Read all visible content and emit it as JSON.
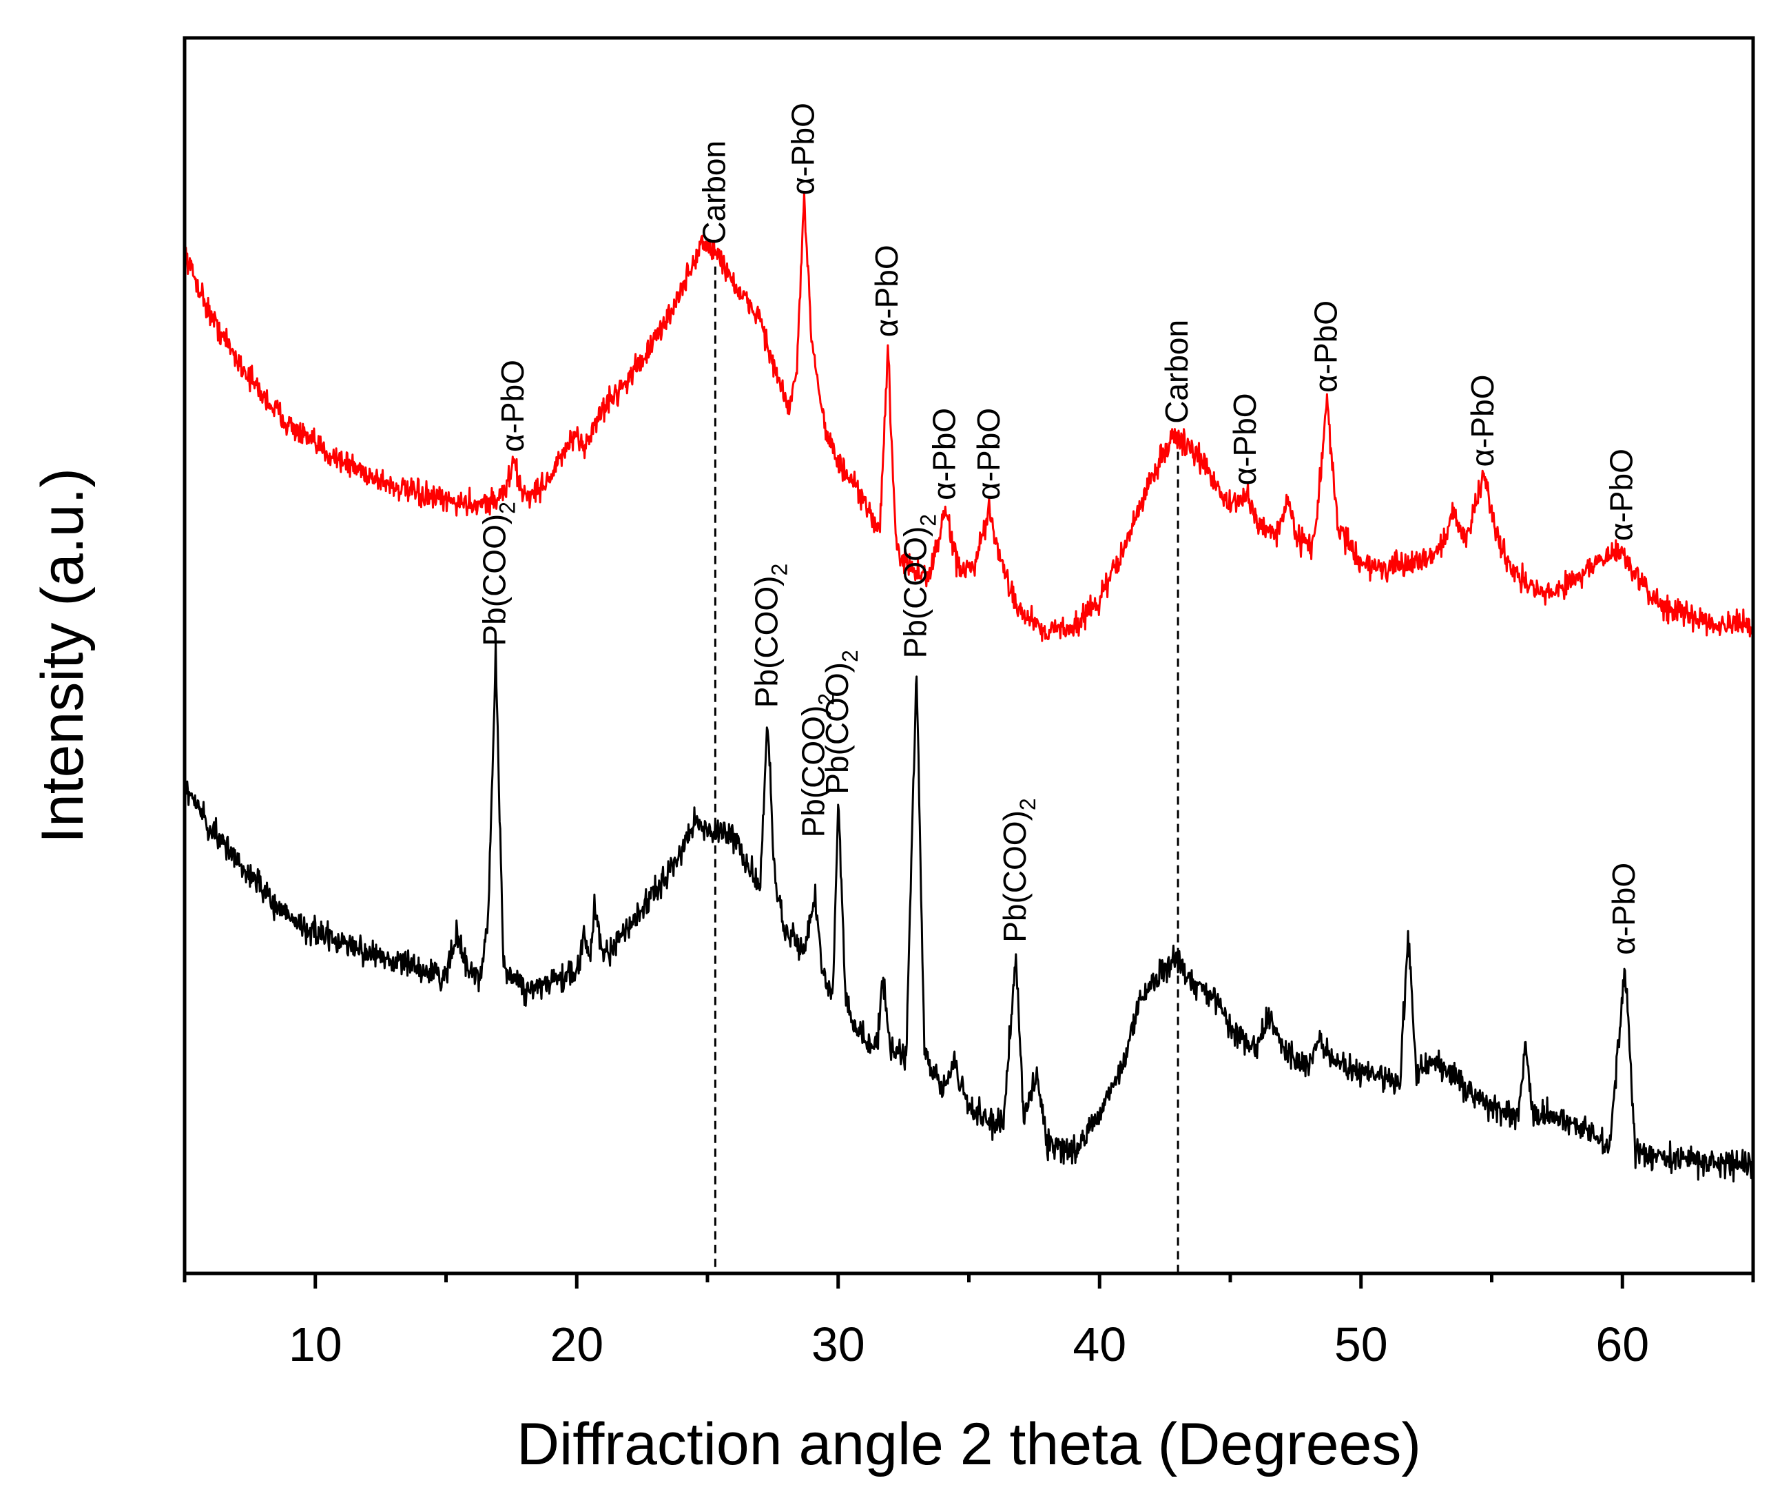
{
  "chart_data": {
    "type": "line",
    "title": "",
    "xlabel": "Diffraction angle 2 theta (Degrees)",
    "ylabel": "Intensity (a.u.)",
    "xlim": [
      5,
      65
    ],
    "ylim": [
      0,
      100
    ],
    "x_ticks": [
      10,
      20,
      30,
      40,
      50,
      60
    ],
    "x_tick_labels": [
      "10",
      "20",
      "30",
      "40",
      "50",
      "60"
    ],
    "y_ticks_shown": false,
    "grid": false,
    "legend": "none",
    "colors": {
      "top_series": "#ff0000",
      "bottom_series": "#000000",
      "axis": "#000000"
    },
    "reference_lines": [
      {
        "label": "Carbon",
        "x": 25.3,
        "style": "dashed"
      },
      {
        "label": "Carbon",
        "x": 43.0,
        "style": "dashed"
      }
    ],
    "series": [
      {
        "name": "top (red) pattern",
        "color": "#ff0000",
        "noise": 1.0,
        "points": [
          [
            5.0,
            82.5
          ],
          [
            6.0,
            77.5
          ],
          [
            7.0,
            74.0
          ],
          [
            8.0,
            71.0
          ],
          [
            9.0,
            68.7
          ],
          [
            10.0,
            67.0
          ],
          [
            11.0,
            65.8
          ],
          [
            12.0,
            64.7
          ],
          [
            13.0,
            63.7
          ],
          [
            14.0,
            63.0
          ],
          [
            15.0,
            62.5
          ],
          [
            16.0,
            62.3
          ],
          [
            17.0,
            62.6
          ],
          [
            17.3,
            63.6
          ],
          [
            17.6,
            65.7
          ],
          [
            17.9,
            63.2
          ],
          [
            18.3,
            63.0
          ],
          [
            19.0,
            64.5
          ],
          [
            19.8,
            67.5
          ],
          [
            20.3,
            67.0
          ],
          [
            21.0,
            70.0
          ],
          [
            22.0,
            72.5
          ],
          [
            23.0,
            75.5
          ],
          [
            24.0,
            79.5
          ],
          [
            24.8,
            83.5
          ],
          [
            25.5,
            82.2
          ],
          [
            26.3,
            79.0
          ],
          [
            27.0,
            77.5
          ],
          [
            27.5,
            73.5
          ],
          [
            28.1,
            70.0
          ],
          [
            28.4,
            72.5
          ],
          [
            28.7,
            86.5
          ],
          [
            29.0,
            75.5
          ],
          [
            29.5,
            68.5
          ],
          [
            30.0,
            65.5
          ],
          [
            30.6,
            63.8
          ],
          [
            31.2,
            61.5
          ],
          [
            31.6,
            60.3
          ],
          [
            31.9,
            75.0
          ],
          [
            32.2,
            59.0
          ],
          [
            32.8,
            56.8
          ],
          [
            33.5,
            56.5
          ],
          [
            34.1,
            61.8
          ],
          [
            34.6,
            57.0
          ],
          [
            35.2,
            57.0
          ],
          [
            35.8,
            61.8
          ],
          [
            36.2,
            57.5
          ],
          [
            37.0,
            53.5
          ],
          [
            38.0,
            52.0
          ],
          [
            39.0,
            52.3
          ],
          [
            40.0,
            54.5
          ],
          [
            41.0,
            59.0
          ],
          [
            42.0,
            64.5
          ],
          [
            42.8,
            67.8
          ],
          [
            43.5,
            66.8
          ],
          [
            44.3,
            64.5
          ],
          [
            45.0,
            62.0
          ],
          [
            45.6,
            63.0
          ],
          [
            46.1,
            60.5
          ],
          [
            46.8,
            60.0
          ],
          [
            47.2,
            62.5
          ],
          [
            47.6,
            59.5
          ],
          [
            48.2,
            59.0
          ],
          [
            48.7,
            70.5
          ],
          [
            49.1,
            60.5
          ],
          [
            50.0,
            57.5
          ],
          [
            51.0,
            57.0
          ],
          [
            52.0,
            57.5
          ],
          [
            53.0,
            58.5
          ],
          [
            53.5,
            61.5
          ],
          [
            54.0,
            59.5
          ],
          [
            54.7,
            64.5
          ],
          [
            55.3,
            59.0
          ],
          [
            56.0,
            56.5
          ],
          [
            57.0,
            54.8
          ],
          [
            58.0,
            56.0
          ],
          [
            59.0,
            57.5
          ],
          [
            60.0,
            58.5
          ],
          [
            60.5,
            56.5
          ],
          [
            61.0,
            55.0
          ],
          [
            62.0,
            53.5
          ],
          [
            63.0,
            53.0
          ],
          [
            64.0,
            52.5
          ],
          [
            65.0,
            52.3
          ]
        ]
      },
      {
        "name": "bottom (black) pattern",
        "color": "#000000",
        "noise": 1.1,
        "points": [
          [
            5.0,
            39.5
          ],
          [
            6.0,
            36.0
          ],
          [
            7.0,
            33.5
          ],
          [
            8.0,
            31.0
          ],
          [
            9.0,
            28.8
          ],
          [
            10.0,
            27.5
          ],
          [
            11.0,
            26.8
          ],
          [
            12.0,
            26.0
          ],
          [
            13.0,
            25.3
          ],
          [
            14.0,
            24.6
          ],
          [
            15.0,
            24.0
          ],
          [
            15.4,
            27.5
          ],
          [
            15.8,
            24.5
          ],
          [
            16.3,
            24.0
          ],
          [
            16.6,
            28.0
          ],
          [
            16.9,
            50.0
          ],
          [
            17.2,
            25.0
          ],
          [
            18.0,
            23.0
          ],
          [
            19.0,
            23.5
          ],
          [
            20.0,
            24.5
          ],
          [
            20.3,
            27.5
          ],
          [
            20.5,
            25.0
          ],
          [
            20.7,
            30.0
          ],
          [
            21.0,
            25.5
          ],
          [
            22.0,
            28.0
          ],
          [
            23.0,
            31.0
          ],
          [
            24.0,
            34.0
          ],
          [
            24.5,
            37.0
          ],
          [
            25.0,
            35.5
          ],
          [
            25.5,
            35.8
          ],
          [
            26.0,
            35.5
          ],
          [
            26.7,
            32.5
          ],
          [
            27.0,
            31.0
          ],
          [
            27.3,
            45.0
          ],
          [
            27.6,
            31.0
          ],
          [
            28.0,
            28.0
          ],
          [
            28.7,
            26.0
          ],
          [
            29.1,
            30.5
          ],
          [
            29.4,
            24.5
          ],
          [
            29.8,
            22.5
          ],
          [
            30.0,
            38.0
          ],
          [
            30.3,
            22.0
          ],
          [
            31.0,
            19.0
          ],
          [
            31.5,
            18.5
          ],
          [
            31.7,
            24.0
          ],
          [
            32.0,
            18.0
          ],
          [
            32.6,
            17.5
          ],
          [
            33.0,
            49.0
          ],
          [
            33.3,
            17.5
          ],
          [
            34.0,
            15.0
          ],
          [
            34.4,
            17.5
          ],
          [
            34.8,
            14.5
          ],
          [
            35.5,
            12.5
          ],
          [
            36.3,
            12.0
          ],
          [
            36.8,
            26.0
          ],
          [
            37.1,
            12.5
          ],
          [
            37.6,
            16.0
          ],
          [
            38.0,
            10.5
          ],
          [
            39.0,
            10.0
          ],
          [
            40.0,
            13.0
          ],
          [
            41.0,
            17.5
          ],
          [
            41.5,
            22.0
          ],
          [
            42.2,
            24.0
          ],
          [
            43.0,
            25.5
          ],
          [
            43.5,
            23.5
          ],
          [
            44.3,
            22.5
          ],
          [
            45.0,
            20.0
          ],
          [
            46.0,
            18.0
          ],
          [
            46.5,
            21.0
          ],
          [
            47.0,
            18.0
          ],
          [
            48.0,
            16.5
          ],
          [
            48.4,
            19.0
          ],
          [
            49.0,
            17.0
          ],
          [
            50.0,
            16.5
          ],
          [
            51.0,
            15.5
          ],
          [
            51.5,
            15.5
          ],
          [
            51.8,
            27.5
          ],
          [
            52.1,
            16.5
          ],
          [
            53.0,
            17.0
          ],
          [
            54.0,
            15.0
          ],
          [
            55.0,
            13.5
          ],
          [
            56.0,
            12.5
          ],
          [
            56.3,
            18.5
          ],
          [
            56.6,
            12.5
          ],
          [
            57.0,
            13.0
          ],
          [
            58.0,
            12.0
          ],
          [
            59.0,
            11.0
          ],
          [
            59.5,
            10.0
          ],
          [
            60.1,
            25.0
          ],
          [
            60.5,
            10.0
          ],
          [
            61.0,
            9.5
          ],
          [
            62.0,
            9.5
          ],
          [
            63.0,
            9.0
          ],
          [
            64.0,
            9.0
          ],
          [
            65.0,
            9.0
          ]
        ]
      }
    ],
    "annotations": [
      {
        "series": "top",
        "label": "α-PbO",
        "x": 17.6,
        "y": 65.7,
        "subscript": ""
      },
      {
        "series": "top",
        "label": "Carbon",
        "x": 25.3,
        "y": 82.5,
        "subscript": ""
      },
      {
        "series": "top",
        "label": "α-PbO",
        "x": 28.7,
        "y": 86.5,
        "subscript": ""
      },
      {
        "series": "top",
        "label": "α-PbO",
        "x": 31.9,
        "y": 75.0,
        "subscript": ""
      },
      {
        "series": "top",
        "label": "α-PbO",
        "x": 34.1,
        "y": 61.8,
        "subscript": ""
      },
      {
        "series": "top",
        "label": "α-PbO",
        "x": 35.8,
        "y": 61.8,
        "subscript": ""
      },
      {
        "series": "top",
        "label": "Carbon",
        "x": 43.0,
        "y": 68.0,
        "subscript": ""
      },
      {
        "series": "top",
        "label": "α-PbO",
        "x": 45.6,
        "y": 63.0,
        "subscript": ""
      },
      {
        "series": "top",
        "label": "α-PbO",
        "x": 48.7,
        "y": 70.5,
        "subscript": ""
      },
      {
        "series": "top",
        "label": "α-PbO",
        "x": 54.7,
        "y": 64.5,
        "subscript": ""
      },
      {
        "series": "top",
        "label": "α-PbO",
        "x": 60.0,
        "y": 58.5,
        "subscript": ""
      },
      {
        "series": "bottom",
        "label": "Pb(COO)",
        "x": 16.9,
        "y": 50.0,
        "subscript": "2"
      },
      {
        "series": "bottom",
        "label": "Pb(COO)",
        "x": 27.3,
        "y": 45.0,
        "subscript": "2"
      },
      {
        "series": "bottom",
        "label": "Pb(COO)",
        "x": 29.1,
        "y": 34.5,
        "subscript": "2"
      },
      {
        "series": "bottom",
        "label": "Pb(COO)",
        "x": 30.0,
        "y": 38.0,
        "subscript": "2"
      },
      {
        "series": "bottom",
        "label": "Pb(COO)",
        "x": 33.0,
        "y": 49.0,
        "subscript": "2"
      },
      {
        "series": "bottom",
        "label": "Pb(COO)",
        "x": 36.8,
        "y": 26.0,
        "subscript": "2"
      },
      {
        "series": "bottom",
        "label": "α-PbO",
        "x": 60.1,
        "y": 25.0,
        "subscript": ""
      }
    ]
  }
}
